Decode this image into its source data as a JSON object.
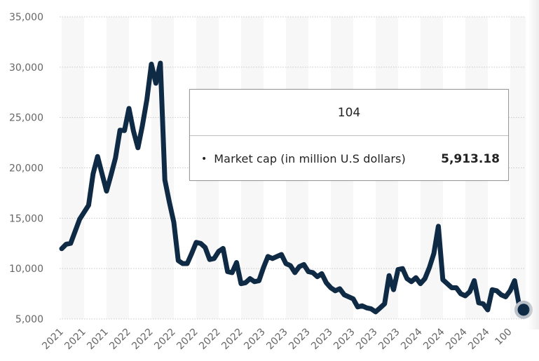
{
  "chart_data": {
    "type": "line",
    "title": "",
    "xlabel": "",
    "ylabel": "",
    "ylim": [
      5000,
      35000
    ],
    "yticks": [
      5000,
      10000,
      15000,
      20000,
      25000,
      30000,
      35000
    ],
    "ytick_labels": [
      "5,000",
      "10,000",
      "15,000",
      "20,000",
      "25,000",
      "30,000",
      "35,000"
    ],
    "grid": true,
    "x_tick_labels": [
      "2021",
      "2021",
      "2021",
      "2022",
      "2022",
      "2022",
      "2022",
      "2022",
      "2022",
      "2023",
      "2023",
      "2023",
      "2023",
      "2023",
      "2023",
      "2023",
      "2024",
      "2024",
      "2024",
      "2024",
      "100"
    ],
    "x_tick_every": 5,
    "series": [
      {
        "name": "Market cap (in million U.S dollars)",
        "color": "#0f2a44",
        "values": [
          11974,
          12420,
          12511,
          13703,
          14896,
          15600,
          16298,
          19400,
          21125,
          19400,
          17693,
          19297,
          21000,
          23747,
          23700,
          25900,
          23663,
          22000,
          24221,
          26800,
          30300,
          28400,
          30400,
          18800,
          16600,
          14600,
          10800,
          10500,
          10500,
          11500,
          12600,
          12500,
          12100,
          10900,
          11000,
          11700,
          12000,
          9700,
          9600,
          10600,
          8500,
          8600,
          9000,
          8700,
          8800,
          10100,
          11200,
          11000,
          11200,
          11400,
          10500,
          10300,
          9600,
          10200,
          10400,
          9700,
          9600,
          9200,
          9500,
          8600,
          8100,
          7800,
          8000,
          7400,
          7200,
          7000,
          6200,
          6300,
          6100,
          6000,
          5700,
          6100,
          6500,
          9300,
          7900,
          9900,
          10000,
          9000,
          8700,
          9100,
          8500,
          9000,
          10100,
          11500,
          14200,
          8900,
          8500,
          8100,
          8100,
          7500,
          7300,
          7700,
          8800,
          6600,
          6500,
          5900,
          7900,
          7800,
          7400,
          7200,
          7800,
          8800,
          6400,
          5913.18
        ]
      }
    ],
    "highlighted_point": {
      "category": "104",
      "value": 5913.18
    }
  },
  "tooltip": {
    "title": "104",
    "bullet": "•",
    "series_label": "Market cap (in million U.S dollars)",
    "value": "5,913.18"
  },
  "colors": {
    "line": "#0f2a44",
    "marker_halo": "#b9c0c8",
    "band": "#f7f7f7",
    "grid": "#c8c8c8",
    "axis_text": "#666666"
  }
}
